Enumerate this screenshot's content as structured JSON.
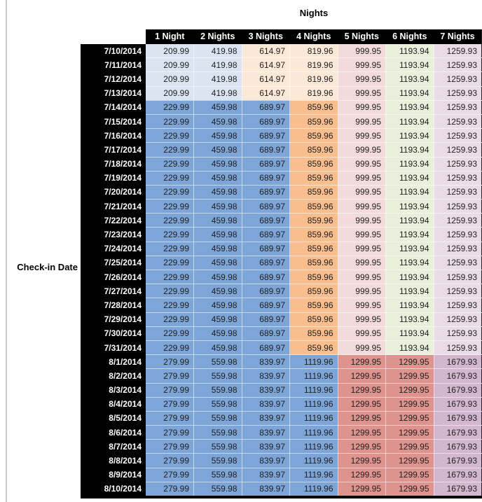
{
  "title": "Nights",
  "row_axis_label": "Check-in Date",
  "colors": {
    "header_bg": "#000000",
    "header_text": "#ffffff",
    "data_text": "#1f1f1f",
    "page_bg": "#ffffff",
    "left_rule": "#c9c9c9",
    "grid_line": "rgba(255,255,255,0.55)"
  },
  "band_colors": {
    "early": [
      "#DBE5F1",
      "#DBE5F1",
      "#FBE8D7",
      "#FBE8D7",
      "#F2DBDA",
      "#E8EFDA",
      "#EADCE6"
    ],
    "mid": [
      "#7DA5D8",
      "#7DA5D8",
      "#7DA5D8",
      "#F9BE8E",
      "#F2DBDA",
      "#E8EFDA",
      "#EADCE6"
    ],
    "late": [
      "#7DA5D8",
      "#7DA5D8",
      "#7DA5D8",
      "#7DA5D8",
      "#DF938E",
      "#DF938E",
      "#D3B7CE"
    ]
  },
  "chart_data": {
    "type": "table",
    "title": "Nights",
    "row_axis_label": "Check-in Date",
    "columns": [
      "1 Night",
      "2 Nights",
      "3 Nights",
      "4 Nights",
      "5 Nights",
      "6 Nights",
      "7 Nights"
    ],
    "rows": [
      {
        "date": "7/10/2014",
        "band": "early",
        "values": [
          "209.99",
          "419.98",
          "614.97",
          "819.96",
          "999.95",
          "1193.94",
          "1259.93"
        ]
      },
      {
        "date": "7/11/2014",
        "band": "early",
        "values": [
          "209.99",
          "419.98",
          "614.97",
          "819.96",
          "999.95",
          "1193.94",
          "1259.93"
        ]
      },
      {
        "date": "7/12/2014",
        "band": "early",
        "values": [
          "209.99",
          "419.98",
          "614.97",
          "819.96",
          "999.95",
          "1193.94",
          "1259.93"
        ]
      },
      {
        "date": "7/13/2014",
        "band": "early",
        "values": [
          "209.99",
          "419.98",
          "614.97",
          "819.96",
          "999.95",
          "1193.94",
          "1259.93"
        ]
      },
      {
        "date": "7/14/2014",
        "band": "mid",
        "values": [
          "229.99",
          "459.98",
          "689.97",
          "859.96",
          "999.95",
          "1193.94",
          "1259.93"
        ]
      },
      {
        "date": "7/15/2014",
        "band": "mid",
        "values": [
          "229.99",
          "459.98",
          "689.97",
          "859.96",
          "999.95",
          "1193.94",
          "1259.93"
        ]
      },
      {
        "date": "7/16/2014",
        "band": "mid",
        "values": [
          "229.99",
          "459.98",
          "689.97",
          "859.96",
          "999.95",
          "1193.94",
          "1259.93"
        ]
      },
      {
        "date": "7/17/2014",
        "band": "mid",
        "values": [
          "229.99",
          "459.98",
          "689.97",
          "859.96",
          "999.95",
          "1193.94",
          "1259.93"
        ]
      },
      {
        "date": "7/18/2014",
        "band": "mid",
        "values": [
          "229.99",
          "459.98",
          "689.97",
          "859.96",
          "999.95",
          "1193.94",
          "1259.93"
        ]
      },
      {
        "date": "7/19/2014",
        "band": "mid",
        "values": [
          "229.99",
          "459.98",
          "689.97",
          "859.96",
          "999.95",
          "1193.94",
          "1259.93"
        ]
      },
      {
        "date": "7/20/2014",
        "band": "mid",
        "values": [
          "229.99",
          "459.98",
          "689.97",
          "859.96",
          "999.95",
          "1193.94",
          "1259.93"
        ]
      },
      {
        "date": "7/21/2014",
        "band": "mid",
        "values": [
          "229.99",
          "459.98",
          "689.97",
          "859.96",
          "999.95",
          "1193.94",
          "1259.93"
        ]
      },
      {
        "date": "7/22/2014",
        "band": "mid",
        "values": [
          "229.99",
          "459.98",
          "689.97",
          "859.96",
          "999.95",
          "1193.94",
          "1259.93"
        ]
      },
      {
        "date": "7/23/2014",
        "band": "mid",
        "values": [
          "229.99",
          "459.98",
          "689.97",
          "859.96",
          "999.95",
          "1193.94",
          "1259.93"
        ]
      },
      {
        "date": "7/24/2014",
        "band": "mid",
        "values": [
          "229.99",
          "459.98",
          "689.97",
          "859.96",
          "999.95",
          "1193.94",
          "1259.93"
        ]
      },
      {
        "date": "7/25/2014",
        "band": "mid",
        "values": [
          "229.99",
          "459.98",
          "689.97",
          "859.96",
          "999.95",
          "1193.94",
          "1259.93"
        ]
      },
      {
        "date": "7/26/2014",
        "band": "mid",
        "values": [
          "229.99",
          "459.98",
          "689.97",
          "859.96",
          "999.95",
          "1193.94",
          "1259.93"
        ]
      },
      {
        "date": "7/27/2014",
        "band": "mid",
        "values": [
          "229.99",
          "459.98",
          "689.97",
          "859.96",
          "999.95",
          "1193.94",
          "1259.93"
        ]
      },
      {
        "date": "7/28/2014",
        "band": "mid",
        "values": [
          "229.99",
          "459.98",
          "689.97",
          "859.96",
          "999.95",
          "1193.94",
          "1259.93"
        ]
      },
      {
        "date": "7/29/2014",
        "band": "mid",
        "values": [
          "229.99",
          "459.98",
          "689.97",
          "859.96",
          "999.95",
          "1193.94",
          "1259.93"
        ]
      },
      {
        "date": "7/30/2014",
        "band": "mid",
        "values": [
          "229.99",
          "459.98",
          "689.97",
          "859.96",
          "999.95",
          "1193.94",
          "1259.93"
        ]
      },
      {
        "date": "7/31/2014",
        "band": "mid",
        "values": [
          "229.99",
          "459.98",
          "689.97",
          "859.96",
          "999.95",
          "1193.94",
          "1259.93"
        ]
      },
      {
        "date": "8/1/2014",
        "band": "late",
        "values": [
          "279.99",
          "559.98",
          "839.97",
          "1119.96",
          "1299.95",
          "1299.95",
          "1679.93"
        ]
      },
      {
        "date": "8/2/2014",
        "band": "late",
        "values": [
          "279.99",
          "559.98",
          "839.97",
          "1119.96",
          "1299.95",
          "1299.95",
          "1679.93"
        ]
      },
      {
        "date": "8/3/2014",
        "band": "late",
        "values": [
          "279.99",
          "559.98",
          "839.97",
          "1119.96",
          "1299.95",
          "1299.95",
          "1679.93"
        ]
      },
      {
        "date": "8/4/2014",
        "band": "late",
        "values": [
          "279.99",
          "559.98",
          "839.97",
          "1119.96",
          "1299.95",
          "1299.95",
          "1679.93"
        ]
      },
      {
        "date": "8/5/2014",
        "band": "late",
        "values": [
          "279.99",
          "559.98",
          "839.97",
          "1119.96",
          "1299.95",
          "1299.95",
          "1679.93"
        ]
      },
      {
        "date": "8/6/2014",
        "band": "late",
        "values": [
          "279.99",
          "559.98",
          "839.97",
          "1119.96",
          "1299.95",
          "1299.95",
          "1679.93"
        ]
      },
      {
        "date": "8/7/2014",
        "band": "late",
        "values": [
          "279.99",
          "559.98",
          "839.97",
          "1119.96",
          "1299.95",
          "1299.95",
          "1679.93"
        ]
      },
      {
        "date": "8/8/2014",
        "band": "late",
        "values": [
          "279.99",
          "559.98",
          "839.97",
          "1119.96",
          "1299.95",
          "1299.95",
          "1679.93"
        ]
      },
      {
        "date": "8/9/2014",
        "band": "late",
        "values": [
          "279.99",
          "559.98",
          "839.97",
          "1119.96",
          "1299.95",
          "1299.95",
          "1679.93"
        ]
      },
      {
        "date": "8/10/2014",
        "band": "late",
        "values": [
          "279.99",
          "559.98",
          "839.97",
          "1119.96",
          "1299.95",
          "1299.95",
          "1679.93"
        ]
      }
    ]
  }
}
